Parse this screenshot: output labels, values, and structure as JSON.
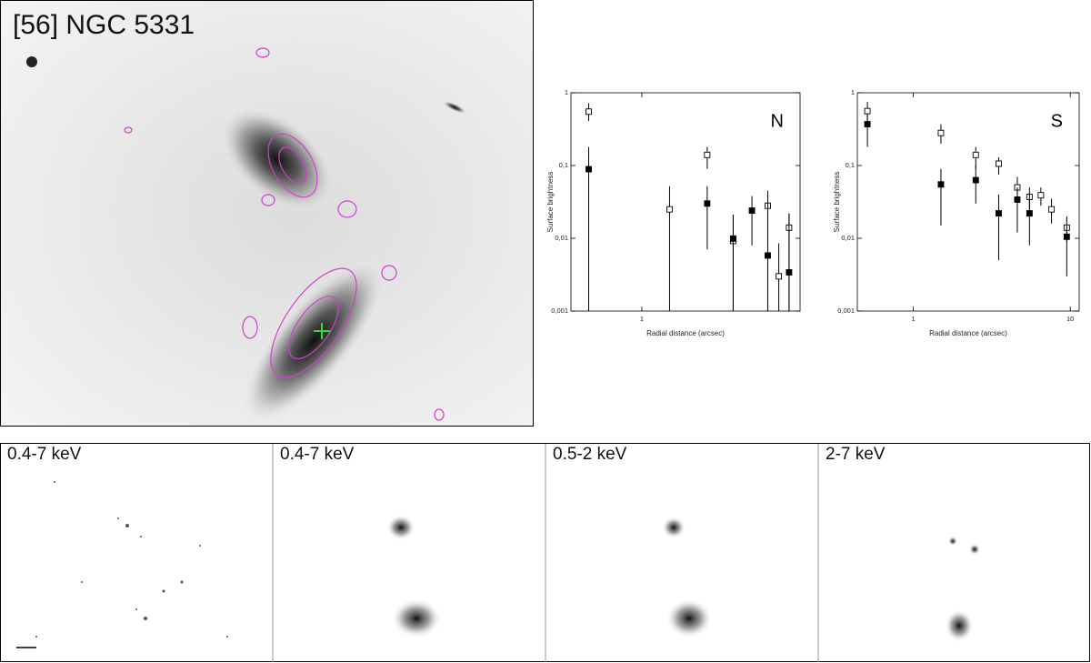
{
  "image_title": "[56] NGC 5331",
  "bottom_panels": [
    "0.4-7 keV",
    "0.4-7 keV",
    "0.5-2 keV",
    "2-7 keV"
  ],
  "chart_data": [
    {
      "type": "scatter",
      "annotation": "N",
      "xlabel": "Radial distance (arcsec)",
      "ylabel": "Surface brightness",
      "xscale": "log",
      "yscale": "log",
      "xlim": [
        0.355,
        10.1
      ],
      "ylim": [
        0.001,
        1
      ],
      "xticks": [
        1
      ],
      "yticks": [
        {
          "value": 0.001,
          "label": "0,001"
        },
        {
          "value": 0.01,
          "label": "0,01"
        },
        {
          "value": 0.1,
          "label": "0,1"
        },
        1
      ],
      "series": [
        {
          "marker": "square",
          "color": "#000000",
          "fill": "#ffffff",
          "x": [
            0.46,
            1.5,
            2.6,
            3.8,
            6.3,
            7.4,
            8.6
          ],
          "values": [
            0.55,
            0.025,
            0.14,
            0.0092,
            0.028,
            0.003,
            0.014
          ],
          "err_low": [
            0.41,
            0.001,
            0.09,
            0.001,
            0.001,
            0.001,
            0.001
          ],
          "err_high": [
            0.72,
            0.052,
            0.18,
            0.021,
            0.045,
            0.0085,
            0.022
          ]
        },
        {
          "marker": "square",
          "color": "#000000",
          "fill": "#000000",
          "x": [
            0.46,
            2.6,
            3.8,
            5.0,
            6.3,
            8.6
          ],
          "values": [
            0.089,
            0.03,
            0.0099,
            0.024,
            0.0058,
            0.0034
          ],
          "err_low": [
            0.001,
            0.007,
            0.001,
            0.008,
            0.001,
            0.001
          ],
          "err_high": [
            0.18,
            0.052,
            0.021,
            0.038,
            0.045,
            0.022
          ]
        }
      ]
    },
    {
      "type": "scatter",
      "annotation": "S",
      "xlabel": "Radial distance (arcsec)",
      "ylabel": "Surface brightness",
      "xscale": "log",
      "yscale": "log",
      "xlim": [
        0.44,
        11.4
      ],
      "ylim": [
        0.001,
        1
      ],
      "xticks": [
        1,
        10
      ],
      "yticks": [
        {
          "value": 0.001,
          "label": "0,001"
        },
        {
          "value": 0.01,
          "label": "0,01"
        },
        {
          "value": 0.1,
          "label": "0,1"
        },
        1
      ],
      "series": [
        {
          "marker": "square",
          "color": "#000000",
          "fill": "#ffffff",
          "x": [
            0.51,
            1.5,
            2.5,
            3.5,
            4.6,
            5.5,
            6.5,
            7.6,
            9.5
          ],
          "values": [
            0.56,
            0.28,
            0.14,
            0.106,
            0.05,
            0.037,
            0.039,
            0.025,
            0.014
          ],
          "err_low": [
            0.42,
            0.2,
            0.09,
            0.075,
            0.035,
            0.025,
            0.028,
            0.016,
            0.009
          ],
          "err_high": [
            0.75,
            0.37,
            0.18,
            0.13,
            0.07,
            0.05,
            0.05,
            0.035,
            0.02
          ]
        },
        {
          "marker": "square",
          "color": "#000000",
          "fill": "#000000",
          "x": [
            0.51,
            1.5,
            2.5,
            3.5,
            4.6,
            5.5,
            9.5
          ],
          "values": [
            0.37,
            0.055,
            0.063,
            0.022,
            0.034,
            0.022,
            0.0105
          ],
          "err_low": [
            0.18,
            0.015,
            0.03,
            0.005,
            0.012,
            0.008,
            0.003
          ],
          "err_high": [
            0.5,
            0.09,
            0.1,
            0.04,
            0.05,
            0.04,
            0.015
          ]
        }
      ]
    }
  ]
}
